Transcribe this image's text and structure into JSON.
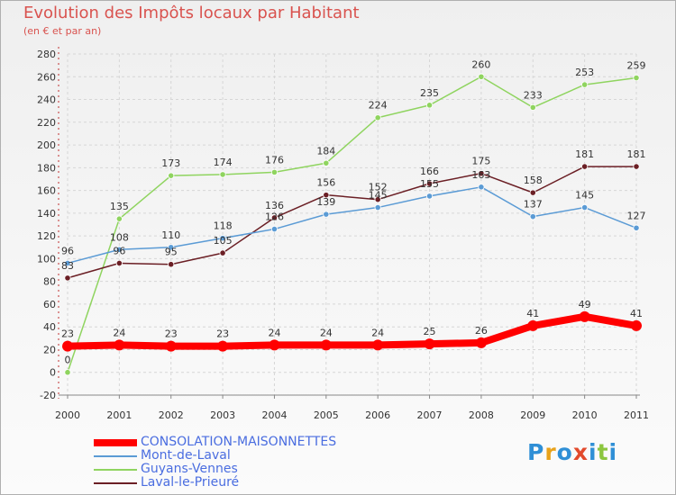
{
  "chart_data": {
    "type": "line",
    "title": "Evolution des Impôts locaux par Habitant",
    "subtitle": "(en € et par an)",
    "categories": [
      "2000",
      "2001",
      "2002",
      "2003",
      "2004",
      "2005",
      "2006",
      "2007",
      "2008",
      "2009",
      "2010",
      "2011"
    ],
    "ylim": [
      -20,
      280
    ],
    "yticks": [
      -20,
      0,
      20,
      40,
      60,
      80,
      100,
      120,
      140,
      160,
      180,
      200,
      220,
      240,
      260,
      280
    ],
    "grid": true,
    "legend_position": "bottom-left",
    "series": [
      {
        "name": "CONSOLATION-MAISONNETTES",
        "color": "#ff0000",
        "values": [
          23,
          24,
          23,
          23,
          24,
          24,
          24,
          25,
          26,
          41,
          49,
          41
        ]
      },
      {
        "name": "Mont-de-Laval",
        "color": "#5b9bd5",
        "values": [
          96,
          108,
          110,
          118,
          126,
          139,
          145,
          155,
          163,
          137,
          145,
          127
        ]
      },
      {
        "name": "Guyans-Vennes",
        "color": "#8fd45f",
        "values": [
          0,
          135,
          173,
          174,
          176,
          184,
          224,
          235,
          260,
          233,
          253,
          259
        ]
      },
      {
        "name": "Laval-le-Prieuré",
        "color": "#6b1f25",
        "values": [
          83,
          96,
          95,
          105,
          136,
          156,
          152,
          166,
          175,
          158,
          181,
          181
        ]
      }
    ]
  },
  "logo": {
    "text": "Proxiti"
  }
}
